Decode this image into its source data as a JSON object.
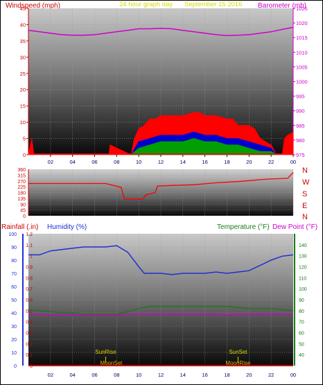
{
  "colors": {
    "windspeed": "#ff0000",
    "gust": "#0000cc",
    "avg_wind": "#00a000",
    "barometer": "#cc00cc",
    "title": "#d9d900",
    "direction": "#ff0000",
    "rainfall": "#cc0000",
    "humidity": "#1f2fd0",
    "temperature": "#1a7a1a",
    "dewpoint": "#cc00cc",
    "sun": "#d9d900",
    "moon": "#e0b000",
    "axis_red": "#cc0000",
    "axis_green": "#1a7a1a",
    "axis_blue": "#1f2fd0",
    "x_tick": "#000066"
  },
  "header": {
    "windspeed_label": "Windspeed (mph)",
    "title": "24 hour graph day",
    "date": "September 15 2016",
    "barometer_label": "Barometer (mb)"
  },
  "compass": [
    "N",
    "W",
    "S",
    "E",
    "N"
  ],
  "bottom_labels": {
    "rainfall": "Rainfall (.in)",
    "humidity": "Humidity (%)",
    "temperature": "Temperature (°F)",
    "dewpoint": "Dew Point (°F)",
    "sunrise": "SunRise",
    "sunset": "SunSet",
    "moonset": "MoonSet",
    "moonrise": "MoonRise"
  },
  "chart_data": [
    {
      "type": "area",
      "title": "24 hour graph day",
      "xlabel": "",
      "ylabel": "Windspeed (mph)",
      "y2label": "Barometer (mb)",
      "x_ticks": [
        "02",
        "04",
        "06",
        "08",
        "10",
        "12",
        "14",
        "16",
        "18",
        "20",
        "22",
        "00"
      ],
      "ylim": [
        0,
        45
      ],
      "y_ticks": [
        0,
        5,
        10,
        15,
        20,
        25,
        30,
        35,
        40,
        45
      ],
      "y2lim": [
        975,
        1025
      ],
      "y2_ticks": [
        975,
        980,
        985,
        990,
        995,
        1000,
        1005,
        1010,
        1015,
        1020,
        1025
      ],
      "series": [
        {
          "name": "Windspeed",
          "color": "#ff0000",
          "x": [
            0,
            0.3,
            0.5,
            7.3,
            7.4,
            9.3,
            9.6,
            10,
            10.5,
            11,
            11.5,
            12,
            13,
            14,
            15,
            15.5,
            16,
            17,
            18,
            18.5,
            19,
            20,
            20.5,
            21,
            21.5,
            22,
            22.5,
            23,
            23.2,
            23.5,
            24
          ],
          "y": [
            0,
            5,
            0,
            0,
            3,
            0,
            5,
            8,
            9,
            11,
            11,
            12,
            12,
            12,
            13,
            13,
            12,
            12,
            11,
            11,
            9,
            9,
            8,
            5,
            4,
            3,
            0,
            0,
            5,
            6,
            7
          ]
        },
        {
          "name": "Gust",
          "color": "#0000cc",
          "x": [
            9.3,
            10,
            11,
            12,
            13,
            14,
            15,
            16,
            17,
            18,
            19,
            20,
            21,
            22,
            22.5
          ],
          "y": [
            0,
            4,
            5,
            6,
            6,
            6,
            7,
            6,
            6,
            5,
            5,
            4,
            3,
            2,
            0
          ]
        },
        {
          "name": "Average",
          "color": "#00a000",
          "x": [
            9.3,
            10,
            11,
            12,
            13,
            14,
            15,
            16,
            17,
            18,
            19,
            20,
            21,
            22,
            22.5
          ],
          "y": [
            0,
            2,
            3,
            4,
            4,
            4,
            5,
            4,
            4,
            3,
            3,
            2,
            1,
            1,
            0
          ]
        },
        {
          "name": "Barometer",
          "color": "#cc00cc",
          "axis": "y2",
          "x": [
            0,
            1,
            2,
            3,
            4,
            5,
            6,
            7,
            8,
            9,
            10,
            11,
            12,
            13,
            14,
            15,
            16,
            17,
            18,
            19,
            20,
            21,
            22,
            23,
            24
          ],
          "y": [
            1017.5,
            1017,
            1016.5,
            1016,
            1015.8,
            1015.8,
            1016,
            1016.5,
            1017,
            1017.5,
            1018,
            1018,
            1018.2,
            1018,
            1017.5,
            1017,
            1016.5,
            1016,
            1015.7,
            1015.8,
            1016,
            1016.5,
            1017,
            1017.8,
            1018.5
          ]
        }
      ]
    },
    {
      "type": "line",
      "ylabel": "",
      "x_ticks": [],
      "ylim": [
        0,
        360
      ],
      "y_ticks": [
        0,
        45,
        90,
        135,
        180,
        225,
        270,
        315,
        360
      ],
      "series": [
        {
          "name": "Wind Direction",
          "color": "#ff0000",
          "x": [
            0,
            6.5,
            7,
            8.4,
            8.7,
            10.4,
            10.6,
            11.5,
            11.7,
            13,
            15,
            17,
            19,
            20.5,
            21,
            22,
            23.5,
            24
          ],
          "y": [
            250,
            250,
            250,
            220,
            130,
            130,
            160,
            180,
            230,
            235,
            240,
            255,
            265,
            275,
            280,
            285,
            290,
            335
          ]
        }
      ]
    },
    {
      "type": "line",
      "x_ticks": [
        "02",
        "04",
        "06",
        "08",
        "10",
        "12",
        "14",
        "16",
        "18",
        "20",
        "22",
        "00"
      ],
      "ylim": [
        0,
        100
      ],
      "y_ticks": [
        0,
        10,
        20,
        30,
        40,
        50,
        60,
        70,
        80,
        90,
        100
      ],
      "rain_lim": [
        0,
        1.2
      ],
      "rain_ticks": [
        0,
        0.1,
        0.2,
        0.3,
        0.4,
        0.5,
        0.6,
        0.7,
        0.8,
        0.9,
        1,
        1.1,
        1.2
      ],
      "temp_lim": [
        30,
        150
      ],
      "temp_ticks": [
        40,
        50,
        60,
        70,
        80,
        90,
        100,
        110,
        120,
        130,
        140
      ],
      "series": [
        {
          "name": "Humidity",
          "color": "#1f2fd0",
          "x": [
            0,
            1,
            2,
            3,
            4,
            5,
            6,
            7,
            8,
            9,
            10,
            10.5,
            11,
            12,
            13,
            14,
            15,
            16,
            17,
            18,
            19,
            20,
            21,
            22,
            23,
            24
          ],
          "y": [
            84,
            84,
            87,
            88,
            89,
            90,
            90,
            90,
            91,
            86,
            75,
            70,
            70,
            70,
            69,
            70,
            70,
            70,
            71,
            70,
            71,
            72,
            76,
            80,
            83,
            84
          ]
        },
        {
          "name": "Temperature",
          "color": "#1a7a1a",
          "axis": "temp",
          "x": [
            0,
            1,
            2,
            3,
            4,
            5,
            6,
            7,
            8,
            9,
            10,
            11,
            12,
            13,
            14,
            15,
            16,
            17,
            18,
            19,
            20,
            21,
            22,
            23,
            24
          ],
          "y": [
            81,
            80,
            79,
            78,
            78,
            77,
            77,
            77,
            77,
            79,
            82,
            84,
            84,
            84,
            84,
            84,
            84,
            84,
            84,
            83,
            82,
            82,
            82,
            81,
            80
          ]
        },
        {
          "name": "Dew Point",
          "color": "#cc00cc",
          "axis": "temp",
          "x": [
            0,
            1,
            2,
            3,
            4,
            5,
            6,
            7,
            8,
            9,
            10,
            11,
            12,
            13,
            14,
            15,
            16,
            17,
            18,
            19,
            20,
            21,
            22,
            23,
            24
          ],
          "y": [
            77,
            77,
            76,
            76,
            76,
            76,
            76,
            76,
            76,
            77,
            77,
            77,
            77,
            77,
            77,
            77,
            77,
            77,
            76,
            77,
            77,
            77,
            77,
            77,
            77
          ]
        },
        {
          "name": "Rainfall",
          "color": "#cc0000",
          "axis": "rain",
          "x": [
            0,
            24
          ],
          "y": [
            0,
            0
          ]
        }
      ],
      "events": {
        "sunrise": 7.0,
        "sunset": 19.0,
        "moonset": 7.5,
        "moonrise": 19.0
      }
    }
  ]
}
